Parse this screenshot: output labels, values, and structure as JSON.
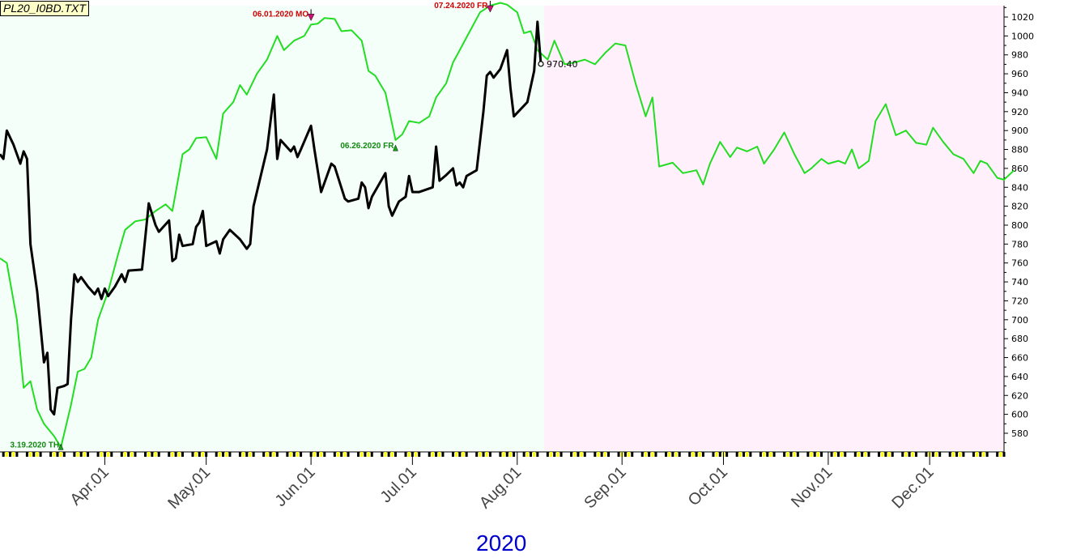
{
  "file_label": "PL20_I0BD.TXT",
  "year_label": "2020",
  "colors": {
    "history_bg": "#f5fffa",
    "forecast_bg": "#fff0fb",
    "forecast_line": "#22dd22",
    "actual_line": "#000000",
    "top_marker": "#cc0000",
    "bottom_marker": "#118811",
    "ruler_yellow": "#ffff00"
  },
  "chart_data": {
    "type": "line",
    "x_start": "2020-03-01",
    "x_end": "2020-12-23",
    "forecast_start": "2020-08-09",
    "ylim": [
      562,
      1032
    ],
    "yticks": [
      580,
      600,
      620,
      640,
      660,
      680,
      700,
      720,
      740,
      760,
      780,
      800,
      820,
      840,
      860,
      880,
      900,
      920,
      940,
      960,
      980,
      1000,
      1020
    ],
    "xticks": [
      {
        "date": "2020-04-01",
        "label": "Apr.01"
      },
      {
        "date": "2020-05-01",
        "label": "May.01"
      },
      {
        "date": "2020-06-01",
        "label": "Jun.01"
      },
      {
        "date": "2020-07-01",
        "label": "Jul.01"
      },
      {
        "date": "2020-08-01",
        "label": "Aug.01"
      },
      {
        "date": "2020-09-01",
        "label": "Sep.01"
      },
      {
        "date": "2020-10-01",
        "label": "Oct.01"
      },
      {
        "date": "2020-11-01",
        "label": "Nov.01"
      },
      {
        "date": "2020-12-01",
        "label": "Dec.01"
      }
    ],
    "series": [
      {
        "role": "forecast",
        "points": [
          [
            "2020-03-01",
            765
          ],
          [
            "2020-03-03",
            760
          ],
          [
            "2020-03-06",
            700
          ],
          [
            "2020-03-08",
            628
          ],
          [
            "2020-03-10",
            635
          ],
          [
            "2020-03-12",
            605
          ],
          [
            "2020-03-14",
            590
          ],
          [
            "2020-03-17",
            577
          ],
          [
            "2020-03-19",
            565
          ],
          [
            "2020-03-22",
            610
          ],
          [
            "2020-03-24",
            645
          ],
          [
            "2020-03-26",
            648
          ],
          [
            "2020-03-28",
            660
          ],
          [
            "2020-03-30",
            700
          ],
          [
            "2020-04-02",
            730
          ],
          [
            "2020-04-05",
            770
          ],
          [
            "2020-04-07",
            795
          ],
          [
            "2020-04-10",
            804
          ],
          [
            "2020-04-13",
            806
          ],
          [
            "2020-04-16",
            815
          ],
          [
            "2020-04-19",
            822
          ],
          [
            "2020-04-21",
            815
          ],
          [
            "2020-04-24",
            875
          ],
          [
            "2020-04-26",
            880
          ],
          [
            "2020-04-28",
            892
          ],
          [
            "2020-05-01",
            893
          ],
          [
            "2020-05-04",
            870
          ],
          [
            "2020-05-06",
            918
          ],
          [
            "2020-05-09",
            930
          ],
          [
            "2020-05-11",
            948
          ],
          [
            "2020-05-13",
            938
          ],
          [
            "2020-05-16",
            960
          ],
          [
            "2020-05-19",
            975
          ],
          [
            "2020-05-22",
            1000
          ],
          [
            "2020-05-24",
            985
          ],
          [
            "2020-05-27",
            995
          ],
          [
            "2020-05-30",
            1000
          ],
          [
            "2020-06-01",
            1012
          ],
          [
            "2020-06-03",
            1013
          ],
          [
            "2020-06-05",
            1019
          ],
          [
            "2020-06-08",
            1018
          ],
          [
            "2020-06-10",
            1005
          ],
          [
            "2020-06-13",
            1006
          ],
          [
            "2020-06-16",
            995
          ],
          [
            "2020-06-18",
            963
          ],
          [
            "2020-06-20",
            958
          ],
          [
            "2020-06-23",
            940
          ],
          [
            "2020-06-26",
            890
          ],
          [
            "2020-06-28",
            896
          ],
          [
            "2020-06-30",
            910
          ],
          [
            "2020-07-03",
            908
          ],
          [
            "2020-07-06",
            915
          ],
          [
            "2020-07-08",
            935
          ],
          [
            "2020-07-11",
            950
          ],
          [
            "2020-07-13",
            972
          ],
          [
            "2020-07-15",
            985
          ],
          [
            "2020-07-18",
            1005
          ],
          [
            "2020-07-21",
            1025
          ],
          [
            "2020-07-24",
            1032
          ],
          [
            "2020-07-27",
            1035
          ],
          [
            "2020-07-29",
            1033
          ],
          [
            "2020-08-01",
            1025
          ],
          [
            "2020-08-03",
            1003
          ],
          [
            "2020-08-05",
            1005
          ],
          [
            "2020-08-07",
            985
          ],
          [
            "2020-08-10",
            975
          ],
          [
            "2020-08-12",
            995
          ],
          [
            "2020-08-15",
            970
          ],
          [
            "2020-08-18",
            972
          ],
          [
            "2020-08-21",
            975
          ],
          [
            "2020-08-24",
            970
          ],
          [
            "2020-08-27",
            982
          ],
          [
            "2020-08-30",
            992
          ],
          [
            "2020-09-02",
            990
          ],
          [
            "2020-09-05",
            950
          ],
          [
            "2020-09-08",
            915
          ],
          [
            "2020-09-10",
            935
          ],
          [
            "2020-09-12",
            862
          ],
          [
            "2020-09-16",
            866
          ],
          [
            "2020-09-19",
            855
          ],
          [
            "2020-09-23",
            858
          ],
          [
            "2020-09-25",
            843
          ],
          [
            "2020-09-27",
            865
          ],
          [
            "2020-09-30",
            888
          ],
          [
            "2020-10-03",
            872
          ],
          [
            "2020-10-05",
            882
          ],
          [
            "2020-10-08",
            878
          ],
          [
            "2020-10-11",
            883
          ],
          [
            "2020-10-13",
            865
          ],
          [
            "2020-10-16",
            880
          ],
          [
            "2020-10-19",
            898
          ],
          [
            "2020-10-22",
            875
          ],
          [
            "2020-10-25",
            855
          ],
          [
            "2020-10-27",
            860
          ],
          [
            "2020-10-30",
            870
          ],
          [
            "2020-11-01",
            865
          ],
          [
            "2020-11-04",
            868
          ],
          [
            "2020-11-06",
            865
          ],
          [
            "2020-11-08",
            880
          ],
          [
            "2020-11-10",
            860
          ],
          [
            "2020-11-13",
            868
          ],
          [
            "2020-11-15",
            910
          ],
          [
            "2020-11-18",
            928
          ],
          [
            "2020-11-21",
            895
          ],
          [
            "2020-11-24",
            900
          ],
          [
            "2020-11-27",
            887
          ],
          [
            "2020-11-30",
            885
          ],
          [
            "2020-12-02",
            903
          ],
          [
            "2020-12-05",
            888
          ],
          [
            "2020-12-08",
            875
          ],
          [
            "2020-12-11",
            870
          ],
          [
            "2020-12-14",
            855
          ],
          [
            "2020-12-16",
            868
          ],
          [
            "2020-12-18",
            865
          ],
          [
            "2020-12-21",
            850
          ],
          [
            "2020-12-23",
            848
          ],
          [
            "2020-12-26",
            858
          ]
        ]
      },
      {
        "role": "actual",
        "points": [
          [
            "2020-03-01",
            875
          ],
          [
            "2020-03-02",
            870
          ],
          [
            "2020-03-03",
            900
          ],
          [
            "2020-03-05",
            885
          ],
          [
            "2020-03-07",
            865
          ],
          [
            "2020-03-08",
            878
          ],
          [
            "2020-03-09",
            870
          ],
          [
            "2020-03-10",
            780
          ],
          [
            "2020-03-12",
            730
          ],
          [
            "2020-03-14",
            655
          ],
          [
            "2020-03-15",
            665
          ],
          [
            "2020-03-16",
            605
          ],
          [
            "2020-03-17",
            600
          ],
          [
            "2020-03-18",
            628
          ],
          [
            "2020-03-20",
            630
          ],
          [
            "2020-03-21",
            632
          ],
          [
            "2020-03-22",
            700
          ],
          [
            "2020-03-23",
            748
          ],
          [
            "2020-03-24",
            740
          ],
          [
            "2020-03-25",
            745
          ],
          [
            "2020-03-27",
            735
          ],
          [
            "2020-03-29",
            727
          ],
          [
            "2020-03-30",
            733
          ],
          [
            "2020-03-31",
            722
          ],
          [
            "2020-04-01",
            733
          ],
          [
            "2020-04-02",
            725
          ],
          [
            "2020-04-04",
            735
          ],
          [
            "2020-04-06",
            748
          ],
          [
            "2020-04-07",
            740
          ],
          [
            "2020-04-08",
            752
          ],
          [
            "2020-04-12",
            753
          ],
          [
            "2020-04-14",
            823
          ],
          [
            "2020-04-16",
            800
          ],
          [
            "2020-04-17",
            793
          ],
          [
            "2020-04-20",
            805
          ],
          [
            "2020-04-21",
            762
          ],
          [
            "2020-04-22",
            765
          ],
          [
            "2020-04-23",
            790
          ],
          [
            "2020-04-24",
            778
          ],
          [
            "2020-04-27",
            780
          ],
          [
            "2020-04-28",
            798
          ],
          [
            "2020-04-29",
            803
          ],
          [
            "2020-04-30",
            815
          ],
          [
            "2020-05-01",
            778
          ],
          [
            "2020-05-04",
            783
          ],
          [
            "2020-05-05",
            770
          ],
          [
            "2020-05-06",
            785
          ],
          [
            "2020-05-08",
            795
          ],
          [
            "2020-05-11",
            785
          ],
          [
            "2020-05-13",
            775
          ],
          [
            "2020-05-14",
            780
          ],
          [
            "2020-05-15",
            820
          ],
          [
            "2020-05-19",
            880
          ],
          [
            "2020-05-21",
            938
          ],
          [
            "2020-05-22",
            870
          ],
          [
            "2020-05-23",
            890
          ],
          [
            "2020-05-26",
            878
          ],
          [
            "2020-05-27",
            883
          ],
          [
            "2020-05-28",
            872
          ],
          [
            "2020-05-29",
            880
          ],
          [
            "2020-06-01",
            905
          ],
          [
            "2020-06-02",
            880
          ],
          [
            "2020-06-04",
            835
          ],
          [
            "2020-06-07",
            865
          ],
          [
            "2020-06-08",
            862
          ],
          [
            "2020-06-11",
            828
          ],
          [
            "2020-06-12",
            825
          ],
          [
            "2020-06-15",
            828
          ],
          [
            "2020-06-16",
            845
          ],
          [
            "2020-06-17",
            840
          ],
          [
            "2020-06-18",
            818
          ],
          [
            "2020-06-19",
            830
          ],
          [
            "2020-06-23",
            855
          ],
          [
            "2020-06-24",
            820
          ],
          [
            "2020-06-25",
            810
          ],
          [
            "2020-06-27",
            825
          ],
          [
            "2020-06-29",
            830
          ],
          [
            "2020-06-30",
            852
          ],
          [
            "2020-07-01",
            835
          ],
          [
            "2020-07-03",
            835
          ],
          [
            "2020-07-07",
            840
          ],
          [
            "2020-07-08",
            883
          ],
          [
            "2020-07-09",
            847
          ],
          [
            "2020-07-11",
            853
          ],
          [
            "2020-07-13",
            860
          ],
          [
            "2020-07-14",
            842
          ],
          [
            "2020-07-15",
            845
          ],
          [
            "2020-07-16",
            840
          ],
          [
            "2020-07-17",
            852
          ],
          [
            "2020-07-19",
            856
          ],
          [
            "2020-07-20",
            858
          ],
          [
            "2020-07-22",
            920
          ],
          [
            "2020-07-23",
            958
          ],
          [
            "2020-07-24",
            962
          ],
          [
            "2020-07-25",
            956
          ],
          [
            "2020-07-27",
            965
          ],
          [
            "2020-07-28",
            975
          ],
          [
            "2020-07-29",
            985
          ],
          [
            "2020-07-30",
            945
          ],
          [
            "2020-07-31",
            915
          ],
          [
            "2020-08-04",
            930
          ],
          [
            "2020-08-06",
            963
          ],
          [
            "2020-08-07",
            1015
          ],
          [
            "2020-08-08",
            970.4
          ]
        ]
      }
    ],
    "annotations": [
      {
        "kind": "top",
        "date": "2020-06-01",
        "value": 1018,
        "text": "06.01.2020 MO"
      },
      {
        "kind": "top",
        "date": "2020-07-24",
        "value": 1032,
        "text": "07.24.2020 FR"
      },
      {
        "kind": "bottom",
        "date": "2020-06-26",
        "value": 882,
        "text": "06.26.2020 FR"
      },
      {
        "kind": "bottom",
        "date": "2020-03-19",
        "value": 566,
        "text": "3.19.2020 TH"
      },
      {
        "kind": "last",
        "date": "2020-08-08",
        "value": 970.4,
        "text": "970.40"
      }
    ]
  }
}
